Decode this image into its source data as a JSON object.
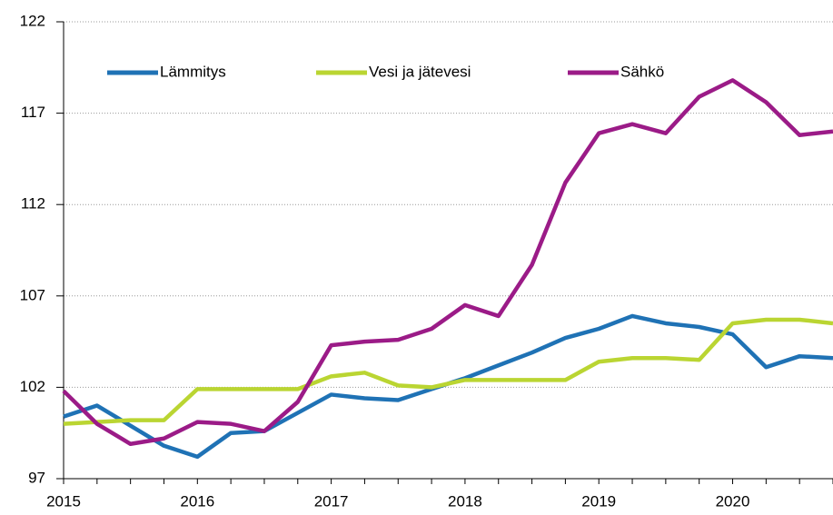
{
  "chart_data": {
    "type": "line",
    "categories": [
      "2015",
      null,
      null,
      null,
      "2016",
      null,
      null,
      null,
      "2017",
      null,
      null,
      null,
      "2018",
      null,
      null,
      null,
      "2019",
      null,
      null,
      null,
      "2020",
      null,
      null,
      null
    ],
    "series": [
      {
        "name": "Lämmitys",
        "color": "#1f72b5",
        "values": [
          100.4,
          101.0,
          99.9,
          98.8,
          98.2,
          99.5,
          99.6,
          100.6,
          101.6,
          101.4,
          101.3,
          101.9,
          102.5,
          103.2,
          103.9,
          104.7,
          105.2,
          105.9,
          105.5,
          105.3,
          104.9,
          103.1,
          103.7,
          103.6
        ]
      },
      {
        "name": "Vesi ja jätevesi",
        "color": "#bad532",
        "values": [
          100.0,
          100.1,
          100.2,
          100.2,
          101.9,
          101.9,
          101.9,
          101.9,
          102.6,
          102.8,
          102.1,
          102.0,
          102.4,
          102.4,
          102.4,
          102.4,
          103.4,
          103.6,
          103.6,
          103.5,
          105.5,
          105.7,
          105.7,
          105.5
        ]
      },
      {
        "name": "Sähkö",
        "color": "#9b1b87",
        "values": [
          101.8,
          100.0,
          98.9,
          99.2,
          100.1,
          100.0,
          99.6,
          101.2,
          104.3,
          104.5,
          104.6,
          105.2,
          106.5,
          105.9,
          108.7,
          113.2,
          115.9,
          116.4,
          115.9,
          117.9,
          118.8,
          117.6,
          115.8,
          116.0
        ]
      }
    ],
    "ylim": [
      97,
      122
    ],
    "yticks": [
      97,
      102,
      107,
      112,
      117,
      122
    ],
    "grid": true,
    "legend": "top"
  }
}
